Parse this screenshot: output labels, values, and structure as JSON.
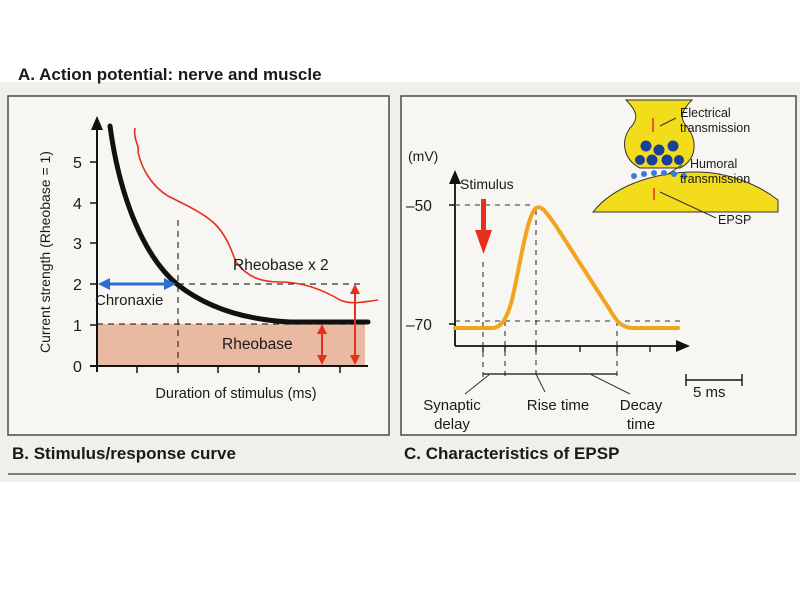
{
  "colors": {
    "page_bg": "#ffffff",
    "slide_bg": "#f0efea",
    "panel_bg": "#f7f6f2",
    "rheobase_band": "#eab9a2",
    "curve_black": "#111111",
    "red": "#e53020",
    "blue": "#2a6fd0",
    "epsp_orange": "#f2a51c",
    "synapse_yellow": "#f3dc1c",
    "vesicle_blue": "#1c3f9a"
  },
  "header_partial": "A. Action potential: nerve and muscle",
  "panel_b": {
    "caption": "B. Stimulus/response curve",
    "y_axis_title": "Current strength (Rheobase = 1)",
    "x_axis_title": "Duration of stimulus (ms)",
    "y_ticks": [
      "0",
      "1",
      "2",
      "3",
      "4",
      "5"
    ],
    "labels": {
      "chronaxie": "Chronaxie",
      "rheobase": "Rheobase",
      "rheobase_x2": "Rheobase x 2"
    },
    "icons": [
      "blue-double-arrow-icon",
      "red-double-arrow-icon"
    ]
  },
  "panel_c": {
    "caption": "C. Characteristics of EPSP",
    "units": "(mV)",
    "stimulus": "Stimulus",
    "y_ticks": [
      "–50",
      "–70"
    ],
    "timing_labels": {
      "synaptic_delay_1": "Synaptic",
      "synaptic_delay_2": "delay",
      "rise_time": "Rise time",
      "decay_time_1": "Decay",
      "decay_time_2": "time"
    },
    "scale_bar": "5 ms",
    "synapse_inset": {
      "electrical": [
        "Electrical",
        "transmission"
      ],
      "humoral": [
        "Humoral",
        "transmission"
      ],
      "epsp": "EPSP"
    },
    "icons": [
      "red-stimulus-arrow-icon",
      "synapse-icon"
    ]
  }
}
